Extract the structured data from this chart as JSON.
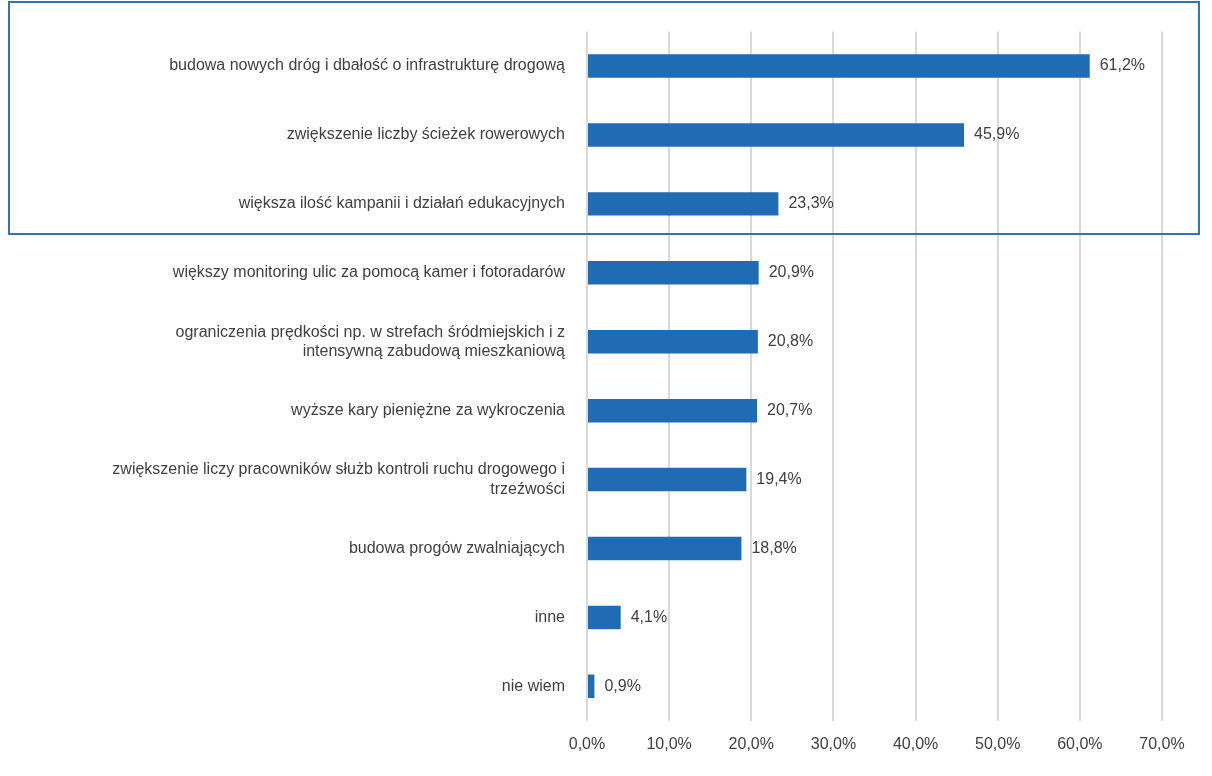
{
  "chart_data": {
    "type": "bar",
    "orientation": "horizontal",
    "categories": [
      "budowa nowych dróg i dbałość o infrastrukturę drogową",
      "zwiększenie liczby ścieżek rowerowych",
      "większa ilość kampanii i działań edukacyjnych",
      "większy monitoring ulic za pomocą kamer i fotoradarów",
      "ograniczenia prędkości np. w strefach śródmiejskich i z intensywną zabudową mieszkaniową",
      "wyższe kary pieniężne za wykroczenia",
      "zwiększenie liczy pracowników służb kontroli ruchu drogowego i trzeźwości",
      "budowa progów zwalniających",
      "inne",
      "nie wiem"
    ],
    "values": [
      61.2,
      45.9,
      23.3,
      20.9,
      20.8,
      20.7,
      19.4,
      18.8,
      4.1,
      0.9
    ],
    "value_labels": [
      "61,2%",
      "45,9%",
      "23,3%",
      "20,9%",
      "20,8%",
      "20,7%",
      "19,4%",
      "18,8%",
      "4,1%",
      "0,9%"
    ],
    "color": "#1f6bb4",
    "xlim": [
      0,
      70
    ],
    "xticks": [
      {
        "value": 0,
        "label": "0,0%"
      },
      {
        "value": 10,
        "label": "10,0%"
      },
      {
        "value": 20,
        "label": "20,0%"
      },
      {
        "value": 30,
        "label": "30,0%"
      },
      {
        "value": 40,
        "label": "40,0%"
      },
      {
        "value": 50,
        "label": "50,0%"
      },
      {
        "value": 60,
        "label": "60,0%"
      },
      {
        "value": 70,
        "label": "70,0%"
      }
    ],
    "grid": "x"
  }
}
